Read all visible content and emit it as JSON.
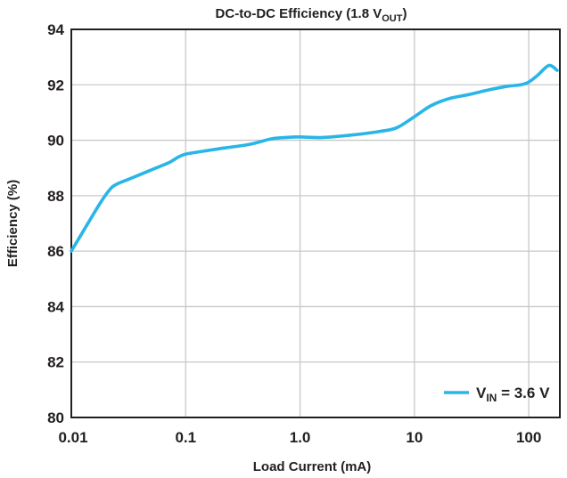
{
  "chart_data": {
    "type": "line",
    "title": "DC-to-DC Efficiency (1.8 V",
    "title_sub": "OUT",
    "title_suffix": ")",
    "xlabel": "Load Current (mA)",
    "ylabel": "Efficiency (%)",
    "xscale": "log",
    "xlim": [
      0.01,
      187
    ],
    "ylim": [
      80,
      94
    ],
    "x_ticks": [
      0.01,
      0.1,
      1.0,
      10,
      100
    ],
    "x_tick_labels": [
      "0.01",
      "0.1",
      "1.0",
      "10",
      "100"
    ],
    "y_ticks": [
      80,
      82,
      84,
      86,
      88,
      90,
      92,
      94
    ],
    "y_tick_labels": [
      "80",
      "82",
      "84",
      "86",
      "88",
      "90",
      "92",
      "94"
    ],
    "grid": true,
    "legend_position": "bottom-right",
    "series": [
      {
        "name": "VIN = 3.6 V",
        "legend_main": "V",
        "legend_sub": "IN",
        "legend_rest": " = 3.6 V",
        "color": "#29B5E8",
        "x": [
          0.01,
          0.0135,
          0.018,
          0.0215,
          0.0245,
          0.032,
          0.042,
          0.055,
          0.072,
          0.085,
          0.1,
          0.13,
          0.2,
          0.36,
          0.56,
          0.75,
          1.0,
          1.6,
          3.0,
          5.0,
          7.0,
          10,
          14,
          20,
          30,
          45,
          66,
          85,
          100,
          120,
          150,
          177
        ],
        "y": [
          86.0,
          86.9,
          87.75,
          88.2,
          88.4,
          88.6,
          88.8,
          89.0,
          89.2,
          89.38,
          89.5,
          89.58,
          89.7,
          89.85,
          90.05,
          90.1,
          90.12,
          90.1,
          90.2,
          90.32,
          90.45,
          90.85,
          91.25,
          91.5,
          91.65,
          91.82,
          91.95,
          92.0,
          92.1,
          92.35,
          92.7,
          92.52
        ]
      }
    ]
  }
}
